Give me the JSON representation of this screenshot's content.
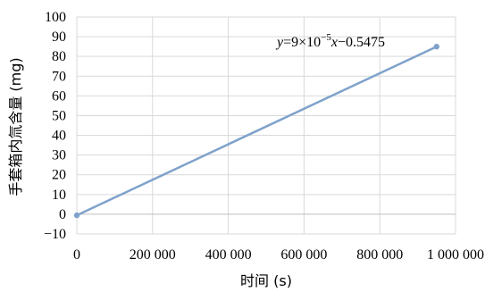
{
  "chart_data": {
    "type": "line",
    "xlabel": "时间 (s)",
    "ylabel": "手套箱内氚含量 (mg)",
    "xlim": [
      0,
      1000000
    ],
    "ylim": [
      -10,
      100
    ],
    "x_ticks": [
      0,
      200000,
      400000,
      600000,
      800000,
      1000000
    ],
    "x_tick_labels": [
      "0",
      "200 000",
      "400 000",
      "600 000",
      "800 000",
      "1 000 000"
    ],
    "y_ticks": [
      -10,
      0,
      10,
      20,
      30,
      40,
      50,
      60,
      70,
      80,
      90,
      100
    ],
    "y_tick_labels": [
      "−10",
      "0",
      "10",
      "20",
      "30",
      "40",
      "50",
      "60",
      "70",
      "80",
      "90",
      "100"
    ],
    "grid": true,
    "series": [
      {
        "x": [
          0,
          950000
        ],
        "y": [
          -0.5475,
          84.9525
        ],
        "color": "#7fa2cb"
      }
    ],
    "trendline_equation": {
      "y": "y",
      "eq": "=9×10",
      "exp": "−5",
      "x": "x",
      "rest": "−0.5475"
    }
  }
}
